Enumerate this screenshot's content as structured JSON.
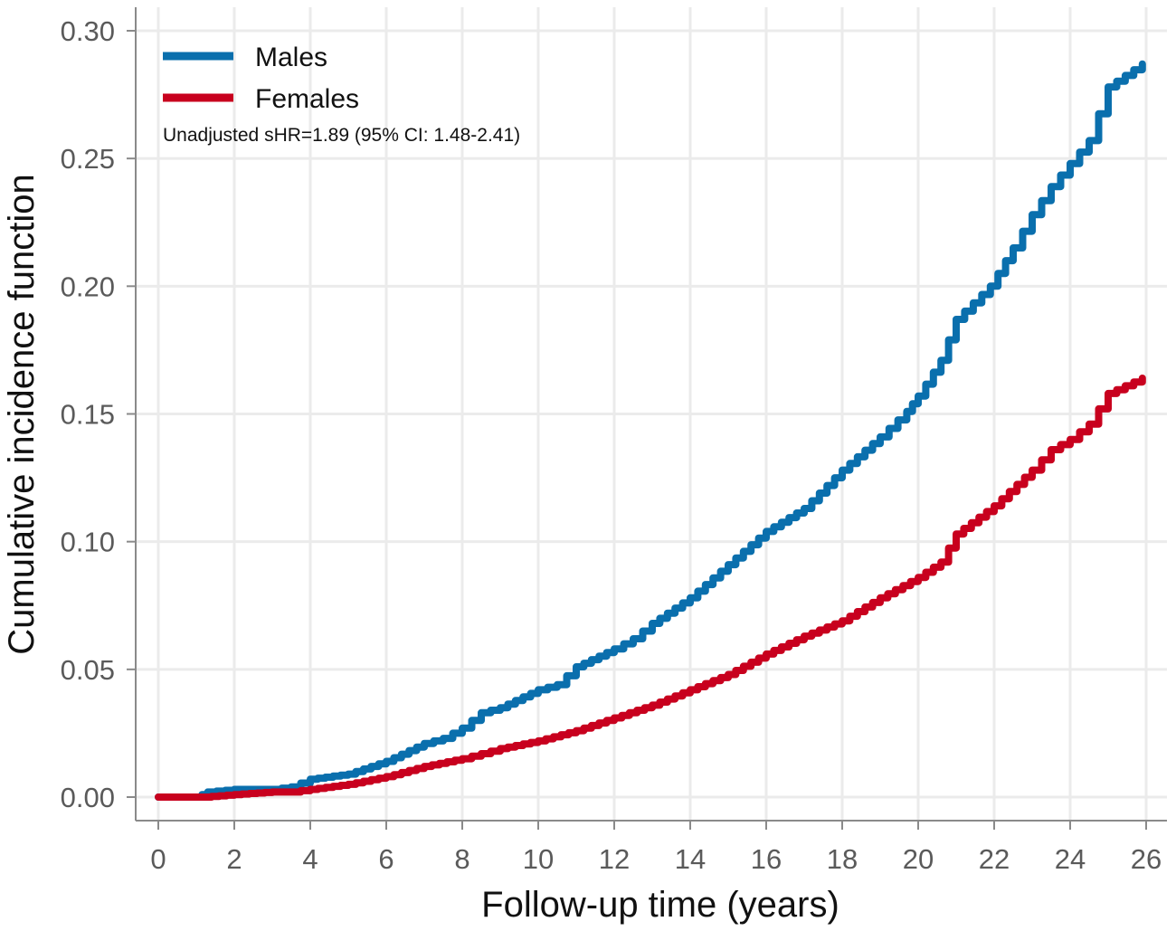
{
  "chart_data": {
    "type": "line",
    "title": "",
    "xlabel": "Follow-up time (years)",
    "ylabel": "Cumulative incidence function",
    "xlim": [
      0,
      26
    ],
    "ylim": [
      0,
      0.3
    ],
    "x_ticks": [
      "0",
      "2",
      "4",
      "6",
      "8",
      "10",
      "12",
      "14",
      "16",
      "18",
      "20",
      "22",
      "24",
      "26"
    ],
    "y_ticks": [
      "0.00",
      "0.05",
      "0.10",
      "0.15",
      "0.20",
      "0.25",
      "0.30"
    ],
    "grid": true,
    "legend_position": "top-left",
    "annotation": "Unadjusted sHR=1.89 (95% CI: 1.48-2.41)",
    "series": [
      {
        "name": "Males",
        "color": "#0a6fad",
        "x": [
          0,
          1,
          1.3,
          2,
          3,
          3.5,
          4,
          5,
          6,
          7,
          7.5,
          8,
          8.5,
          9,
          10,
          10.5,
          11,
          12,
          12.5,
          13,
          14,
          15,
          16,
          17,
          18,
          19,
          19.7,
          20,
          20.6,
          21,
          21.9,
          22.5,
          23,
          23.5,
          24,
          24.5,
          25,
          25.9
        ],
        "y": [
          0.0,
          0.0,
          0.002,
          0.003,
          0.003,
          0.004,
          0.007,
          0.009,
          0.014,
          0.021,
          0.023,
          0.027,
          0.033,
          0.035,
          0.042,
          0.044,
          0.051,
          0.058,
          0.062,
          0.068,
          0.078,
          0.091,
          0.104,
          0.113,
          0.128,
          0.141,
          0.151,
          0.157,
          0.171,
          0.187,
          0.2,
          0.215,
          0.228,
          0.239,
          0.248,
          0.257,
          0.278,
          0.287
        ]
      },
      {
        "name": "Females",
        "color": "#c8001e",
        "x": [
          0,
          1.2,
          2,
          3,
          3.5,
          4,
          5,
          6,
          7,
          8,
          8.5,
          9,
          10,
          11,
          12,
          13,
          14,
          15,
          16,
          17,
          18,
          19,
          20,
          20.6,
          21,
          22,
          23,
          23.5,
          24,
          24.5,
          25,
          25.9
        ],
        "y": [
          0.0,
          0.0,
          0.001,
          0.002,
          0.002,
          0.003,
          0.005,
          0.008,
          0.012,
          0.015,
          0.017,
          0.019,
          0.022,
          0.026,
          0.031,
          0.036,
          0.042,
          0.048,
          0.056,
          0.063,
          0.069,
          0.078,
          0.086,
          0.092,
          0.103,
          0.114,
          0.128,
          0.136,
          0.14,
          0.146,
          0.158,
          0.164
        ]
      }
    ]
  }
}
